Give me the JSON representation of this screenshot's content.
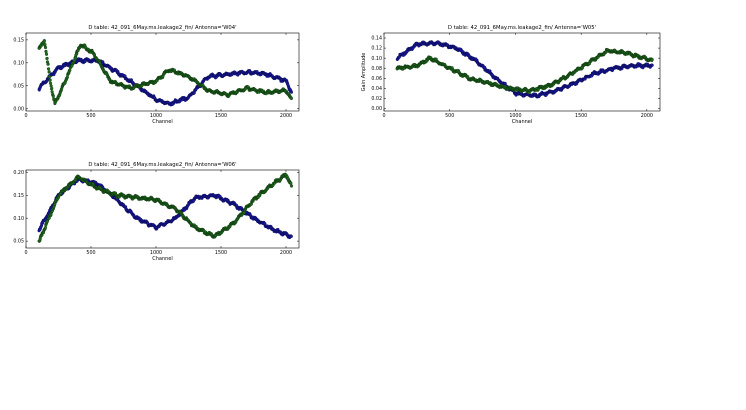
{
  "chart_data": [
    {
      "type": "scatter",
      "title": "D table: 42_091_6May.ms.leakage2_fin/        Antenna='W04'",
      "xlabel": "Channel",
      "ylabel": "",
      "xlim": [
        0,
        2100
      ],
      "ylim": [
        -0.005,
        0.165
      ],
      "xticks": [
        "0",
        "500",
        "1000",
        "1500",
        "2000"
      ],
      "yticks": [
        "0.00",
        "0.05",
        "0.10",
        "0.15"
      ],
      "series": [
        {
          "color": "#1a1aa6",
          "x": [
            100,
            250,
            400,
            550,
            700,
            850,
            1000,
            1100,
            1250,
            1400,
            1550,
            1700,
            1850,
            2000,
            2040
          ],
          "y": [
            0.045,
            0.09,
            0.105,
            0.105,
            0.08,
            0.05,
            0.02,
            0.01,
            0.025,
            0.07,
            0.075,
            0.08,
            0.075,
            0.06,
            0.035
          ]
        },
        {
          "color": "#1f6b1f",
          "x": [
            100,
            140,
            180,
            220,
            300,
            420,
            520,
            650,
            800,
            1000,
            1100,
            1250,
            1400,
            1550,
            1700,
            1850,
            2000,
            2040
          ],
          "y": [
            0.13,
            0.15,
            0.07,
            0.01,
            0.06,
            0.14,
            0.12,
            0.06,
            0.045,
            0.06,
            0.085,
            0.07,
            0.04,
            0.03,
            0.045,
            0.035,
            0.04,
            0.02
          ]
        }
      ]
    },
    {
      "type": "scatter",
      "title": "D table: 42_091_6May.ms.leakage2_fin/        Antenna='W05'",
      "xlabel": "Channel",
      "ylabel": "Gain Amplitude",
      "xlim": [
        0,
        2100
      ],
      "ylim": [
        -0.005,
        0.15
      ],
      "xticks": [
        "0",
        "500",
        "1000",
        "1500",
        "2000"
      ],
      "yticks": [
        "0.00",
        "0.02",
        "0.04",
        "0.06",
        "0.08",
        "0.10",
        "0.12",
        "0.14"
      ],
      "series": [
        {
          "color": "#1a1aa6",
          "x": [
            100,
            250,
            400,
            550,
            700,
            850,
            1000,
            1150,
            1300,
            1450,
            1600,
            1750,
            1900,
            2040
          ],
          "y": [
            0.1,
            0.128,
            0.13,
            0.12,
            0.095,
            0.06,
            0.03,
            0.025,
            0.035,
            0.05,
            0.07,
            0.08,
            0.085,
            0.085
          ]
        },
        {
          "color": "#1f6b1f",
          "x": [
            100,
            250,
            350,
            500,
            650,
            800,
            950,
            1100,
            1250,
            1400,
            1550,
            1700,
            1850,
            2040
          ],
          "y": [
            0.08,
            0.085,
            0.1,
            0.08,
            0.06,
            0.05,
            0.04,
            0.035,
            0.045,
            0.065,
            0.09,
            0.115,
            0.11,
            0.095
          ]
        }
      ]
    },
    {
      "type": "scatter",
      "title": "D table: 42_091_6May.ms.leakage2_fin/        Antenna='W06'",
      "xlabel": "Channel",
      "ylabel": "",
      "xlim": [
        0,
        2100
      ],
      "ylim": [
        0.035,
        0.205
      ],
      "xticks": [
        "0",
        "500",
        "1000",
        "1500",
        "2000"
      ],
      "yticks": [
        "0.05",
        "0.10",
        "0.15",
        "0.20"
      ],
      "series": [
        {
          "color": "#1a1aa6",
          "x": [
            100,
            250,
            400,
            550,
            700,
            850,
            1000,
            1150,
            1300,
            1450,
            1600,
            1750,
            1900,
            2040
          ],
          "y": [
            0.075,
            0.15,
            0.185,
            0.175,
            0.14,
            0.1,
            0.08,
            0.1,
            0.145,
            0.15,
            0.13,
            0.1,
            0.075,
            0.06
          ]
        },
        {
          "color": "#1f6b1f",
          "x": [
            100,
            250,
            400,
            550,
            700,
            850,
            1000,
            1150,
            1300,
            1450,
            1600,
            1750,
            1900,
            2000,
            2040
          ],
          "y": [
            0.05,
            0.15,
            0.19,
            0.165,
            0.15,
            0.145,
            0.14,
            0.12,
            0.08,
            0.06,
            0.09,
            0.14,
            0.175,
            0.195,
            0.17
          ]
        }
      ]
    }
  ]
}
